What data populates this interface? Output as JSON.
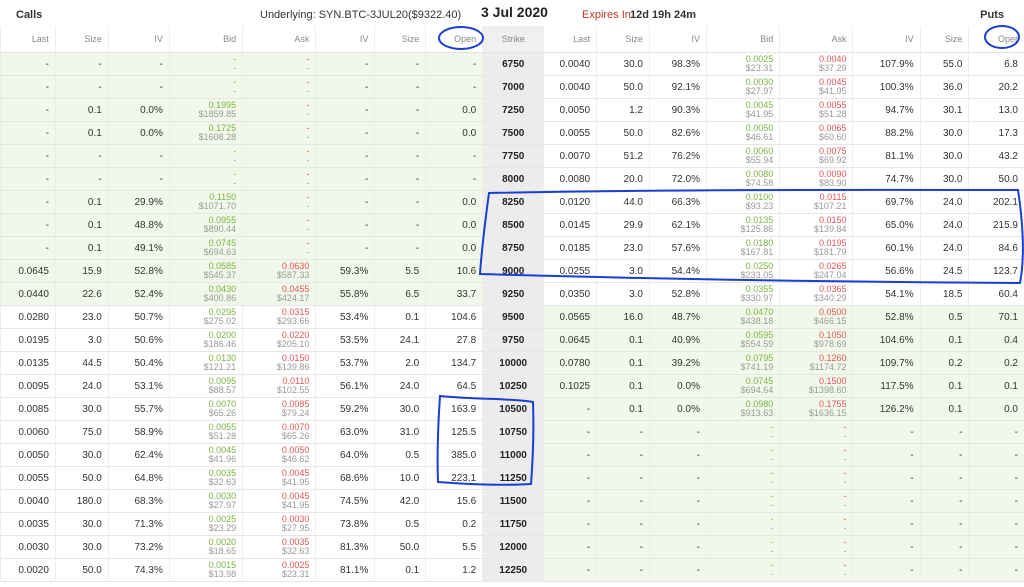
{
  "header": {
    "calls_label": "Calls",
    "puts_label": "Puts",
    "underlying": "Underlying: SYN.BTC-3JUL20($9322.40)",
    "date": "3 Jul 2020",
    "expires_label": "Expires In",
    "expires_value": "12d 19h 24m"
  },
  "columns": {
    "calls": [
      "Last",
      "Size",
      "IV",
      "Bid",
      "Ask",
      "IV",
      "Size",
      "Open"
    ],
    "strike": "Strike",
    "puts": [
      "Last",
      "Size",
      "IV",
      "Bid",
      "Ask",
      "IV",
      "Size",
      "Oper"
    ]
  },
  "rows": [
    {
      "strike": "6750",
      "itm_call": true,
      "itm_put": false,
      "call": {
        "last": "-",
        "size": "-",
        "iv": "-",
        "bid": "-",
        "bid_usd": "-",
        "ask": "-",
        "ask_usd": "-",
        "iv2": "-",
        "size2": "-",
        "open": "-"
      },
      "put": {
        "last": "0.0040",
        "size": "30.0",
        "iv": "98.3%",
        "bid": "0.0025",
        "bid_usd": "$23.31",
        "ask": "0.0040",
        "ask_usd": "$37.29",
        "iv2": "107.9%",
        "size2": "55.0",
        "open": "6.8"
      }
    },
    {
      "strike": "7000",
      "itm_call": true,
      "itm_put": false,
      "call": {
        "last": "-",
        "size": "-",
        "iv": "-",
        "bid": "-",
        "bid_usd": "-",
        "ask": "-",
        "ask_usd": "-",
        "iv2": "-",
        "size2": "-",
        "open": "-"
      },
      "put": {
        "last": "0.0040",
        "size": "50.0",
        "iv": "92.1%",
        "bid": "0.0030",
        "bid_usd": "$27.97",
        "ask": "0.0045",
        "ask_usd": "$41.95",
        "iv2": "100.3%",
        "size2": "36.0",
        "open": "20.2"
      }
    },
    {
      "strike": "7250",
      "itm_call": true,
      "itm_put": false,
      "call": {
        "last": "-",
        "size": "0.1",
        "iv": "0.0%",
        "bid": "0.1995",
        "bid_usd": "$1859.85",
        "ask": "-",
        "ask_usd": "-",
        "iv2": "-",
        "size2": "-",
        "open": "0.0"
      },
      "put": {
        "last": "0.0050",
        "size": "1.2",
        "iv": "90.3%",
        "bid": "0.0045",
        "bid_usd": "$41.95",
        "ask": "0.0055",
        "ask_usd": "$51.28",
        "iv2": "94.7%",
        "size2": "30.1",
        "open": "13.0"
      }
    },
    {
      "strike": "7500",
      "itm_call": true,
      "itm_put": false,
      "call": {
        "last": "-",
        "size": "0.1",
        "iv": "0.0%",
        "bid": "0.1725",
        "bid_usd": "$1608.28",
        "ask": "-",
        "ask_usd": "-",
        "iv2": "-",
        "size2": "-",
        "open": "0.0"
      },
      "put": {
        "last": "0.0055",
        "size": "50.0",
        "iv": "82.6%",
        "bid": "0.0050",
        "bid_usd": "$46.61",
        "ask": "0.0065",
        "ask_usd": "$60.60",
        "iv2": "88.2%",
        "size2": "30.0",
        "open": "17.3"
      }
    },
    {
      "strike": "7750",
      "itm_call": true,
      "itm_put": false,
      "call": {
        "last": "-",
        "size": "-",
        "iv": "-",
        "bid": "-",
        "bid_usd": "-",
        "ask": "-",
        "ask_usd": "-",
        "iv2": "-",
        "size2": "-",
        "open": "-"
      },
      "put": {
        "last": "0.0070",
        "size": "51.2",
        "iv": "76.2%",
        "bid": "0.0060",
        "bid_usd": "$55.94",
        "ask": "0.0075",
        "ask_usd": "$69.92",
        "iv2": "81.1%",
        "size2": "30.0",
        "open": "43.2"
      }
    },
    {
      "strike": "8000",
      "itm_call": true,
      "itm_put": false,
      "call": {
        "last": "-",
        "size": "-",
        "iv": "-",
        "bid": "-",
        "bid_usd": "-",
        "ask": "-",
        "ask_usd": "-",
        "iv2": "-",
        "size2": "-",
        "open": "-"
      },
      "put": {
        "last": "0.0080",
        "size": "20.0",
        "iv": "72.0%",
        "bid": "0.0080",
        "bid_usd": "$74.58",
        "ask": "0.0090",
        "ask_usd": "$83.90",
        "iv2": "74.7%",
        "size2": "30.0",
        "open": "50.0"
      }
    },
    {
      "strike": "8250",
      "itm_call": true,
      "itm_put": false,
      "call": {
        "last": "-",
        "size": "0.1",
        "iv": "29.9%",
        "bid": "0.1150",
        "bid_usd": "$1071.70",
        "ask": "-",
        "ask_usd": "-",
        "iv2": "-",
        "size2": "-",
        "open": "0.0"
      },
      "put": {
        "last": "0.0120",
        "size": "44.0",
        "iv": "66.3%",
        "bid": "0.0100",
        "bid_usd": "$93.23",
        "ask": "0.0115",
        "ask_usd": "$107.21",
        "iv2": "69.7%",
        "size2": "24.0",
        "open": "202.1"
      }
    },
    {
      "strike": "8500",
      "itm_call": true,
      "itm_put": false,
      "call": {
        "last": "-",
        "size": "0.1",
        "iv": "48.8%",
        "bid": "0.0955",
        "bid_usd": "$890.44",
        "ask": "-",
        "ask_usd": "-",
        "iv2": "-",
        "size2": "-",
        "open": "0.0"
      },
      "put": {
        "last": "0.0145",
        "size": "29.9",
        "iv": "62.1%",
        "bid": "0.0135",
        "bid_usd": "$125.86",
        "ask": "0.0150",
        "ask_usd": "$139.84",
        "iv2": "65.0%",
        "size2": "24.0",
        "open": "215.9"
      }
    },
    {
      "strike": "8750",
      "itm_call": true,
      "itm_put": false,
      "call": {
        "last": "-",
        "size": "0.1",
        "iv": "49.1%",
        "bid": "0.0745",
        "bid_usd": "$694.63",
        "ask": "-",
        "ask_usd": "-",
        "iv2": "-",
        "size2": "-",
        "open": "0.0"
      },
      "put": {
        "last": "0.0185",
        "size": "23.0",
        "iv": "57.6%",
        "bid": "0.0180",
        "bid_usd": "$167.81",
        "ask": "0.0195",
        "ask_usd": "$181.79",
        "iv2": "60.1%",
        "size2": "24.0",
        "open": "84.6"
      }
    },
    {
      "strike": "9000",
      "itm_call": true,
      "itm_put": false,
      "call": {
        "last": "0.0645",
        "size": "15.9",
        "iv": "52.8%",
        "bid": "0.0585",
        "bid_usd": "$545.37",
        "ask": "0.0630",
        "ask_usd": "$587.33",
        "iv2": "59.3%",
        "size2": "5.5",
        "open": "10.6"
      },
      "put": {
        "last": "0.0255",
        "size": "3.0",
        "iv": "54.4%",
        "bid": "0.0250",
        "bid_usd": "$233.05",
        "ask": "0.0265",
        "ask_usd": "$247.04",
        "iv2": "56.6%",
        "size2": "24.5",
        "open": "123.7"
      }
    },
    {
      "strike": "9250",
      "itm_call": true,
      "itm_put": false,
      "call": {
        "last": "0.0440",
        "size": "22.6",
        "iv": "52.4%",
        "bid": "0.0430",
        "bid_usd": "$400.86",
        "ask": "0.0455",
        "ask_usd": "$424.17",
        "iv2": "55.8%",
        "size2": "6.5",
        "open": "33.7"
      },
      "put": {
        "last": "0.0350",
        "size": "3.0",
        "iv": "52.8%",
        "bid": "0.0355",
        "bid_usd": "$330.97",
        "ask": "0.0365",
        "ask_usd": "$340.29",
        "iv2": "54.1%",
        "size2": "18.5",
        "open": "60.4"
      }
    },
    {
      "strike": "9500",
      "itm_call": false,
      "itm_put": true,
      "call": {
        "last": "0.0280",
        "size": "23.0",
        "iv": "50.7%",
        "bid": "0.0295",
        "bid_usd": "$275.02",
        "ask": "0.0315",
        "ask_usd": "$293.66",
        "iv2": "53.4%",
        "size2": "0.1",
        "open": "104.6"
      },
      "put": {
        "last": "0.0565",
        "size": "16.0",
        "iv": "48.7%",
        "bid": "0.0470",
        "bid_usd": "$438.18",
        "ask": "0.0500",
        "ask_usd": "$466.15",
        "iv2": "52.8%",
        "size2": "0.5",
        "open": "70.1"
      }
    },
    {
      "strike": "9750",
      "itm_call": false,
      "itm_put": true,
      "call": {
        "last": "0.0195",
        "size": "3.0",
        "iv": "50.6%",
        "bid": "0.0200",
        "bid_usd": "$186.46",
        "ask": "0.0220",
        "ask_usd": "$205.10",
        "iv2": "53.5%",
        "size2": "24.1",
        "open": "27.8"
      },
      "put": {
        "last": "0.0645",
        "size": "0.1",
        "iv": "40.9%",
        "bid": "0.0595",
        "bid_usd": "$554.59",
        "ask": "0.1050",
        "ask_usd": "$978.69",
        "iv2": "104.6%",
        "size2": "0.1",
        "open": "0.4"
      }
    },
    {
      "strike": "10000",
      "itm_call": false,
      "itm_put": true,
      "call": {
        "last": "0.0135",
        "size": "44.5",
        "iv": "50.4%",
        "bid": "0.0130",
        "bid_usd": "$121.21",
        "ask": "0.0150",
        "ask_usd": "$139.86",
        "iv2": "53.7%",
        "size2": "2.0",
        "open": "134.7"
      },
      "put": {
        "last": "0.0780",
        "size": "0.1",
        "iv": "39.2%",
        "bid": "0.0795",
        "bid_usd": "$741.19",
        "ask": "0.1260",
        "ask_usd": "$1174.72",
        "iv2": "109.7%",
        "size2": "0.2",
        "open": "0.2"
      }
    },
    {
      "strike": "10250",
      "itm_call": false,
      "itm_put": true,
      "call": {
        "last": "0.0095",
        "size": "24.0",
        "iv": "53.1%",
        "bid": "0.0095",
        "bid_usd": "$88.57",
        "ask": "0.0110",
        "ask_usd": "$102.55",
        "iv2": "56.1%",
        "size2": "24.0",
        "open": "64.5"
      },
      "put": {
        "last": "0.1025",
        "size": "0.1",
        "iv": "0.0%",
        "bid": "0.0745",
        "bid_usd": "$694.64",
        "ask": "0.1500",
        "ask_usd": "$1398.60",
        "iv2": "117.5%",
        "size2": "0.1",
        "open": "0.1"
      }
    },
    {
      "strike": "10500",
      "itm_call": false,
      "itm_put": true,
      "call": {
        "last": "0.0085",
        "size": "30.0",
        "iv": "55.7%",
        "bid": "0.0070",
        "bid_usd": "$65.26",
        "ask": "0.0085",
        "ask_usd": "$79.24",
        "iv2": "59.2%",
        "size2": "30.0",
        "open": "163.9"
      },
      "put": {
        "last": "-",
        "size": "0.1",
        "iv": "0.0%",
        "bid": "0.0980",
        "bid_usd": "$913.63",
        "ask": "0.1755",
        "ask_usd": "$1636.15",
        "iv2": "126.2%",
        "size2": "0.1",
        "open": "0.0"
      }
    },
    {
      "strike": "10750",
      "itm_call": false,
      "itm_put": true,
      "call": {
        "last": "0.0060",
        "size": "75.0",
        "iv": "58.9%",
        "bid": "0.0055",
        "bid_usd": "$51.28",
        "ask": "0.0070",
        "ask_usd": "$65.26",
        "iv2": "63.0%",
        "size2": "31.0",
        "open": "125.5"
      },
      "put": {
        "last": "-",
        "size": "-",
        "iv": "-",
        "bid": "-",
        "bid_usd": "-",
        "ask": "-",
        "ask_usd": "-",
        "iv2": "-",
        "size2": "-",
        "open": "-"
      }
    },
    {
      "strike": "11000",
      "itm_call": false,
      "itm_put": true,
      "call": {
        "last": "0.0050",
        "size": "30.0",
        "iv": "62.4%",
        "bid": "0.0045",
        "bid_usd": "$41.96",
        "ask": "0.0050",
        "ask_usd": "$46.62",
        "iv2": "64.0%",
        "size2": "0.5",
        "open": "385.0"
      },
      "put": {
        "last": "-",
        "size": "-",
        "iv": "-",
        "bid": "-",
        "bid_usd": "-",
        "ask": "-",
        "ask_usd": "-",
        "iv2": "-",
        "size2": "-",
        "open": "-"
      }
    },
    {
      "strike": "11250",
      "itm_call": false,
      "itm_put": true,
      "call": {
        "last": "0.0055",
        "size": "50.0",
        "iv": "64.8%",
        "bid": "0.0035",
        "bid_usd": "$32.63",
        "ask": "0.0045",
        "ask_usd": "$41.95",
        "iv2": "68.6%",
        "size2": "10.0",
        "open": "223.1"
      },
      "put": {
        "last": "-",
        "size": "-",
        "iv": "-",
        "bid": "-",
        "bid_usd": "-",
        "ask": "-",
        "ask_usd": "-",
        "iv2": "-",
        "size2": "-",
        "open": "-"
      }
    },
    {
      "strike": "11500",
      "itm_call": false,
      "itm_put": true,
      "call": {
        "last": "0.0040",
        "size": "180.0",
        "iv": "68.3%",
        "bid": "0.0030",
        "bid_usd": "$27.97",
        "ask": "0.0045",
        "ask_usd": "$41.95",
        "iv2": "74.5%",
        "size2": "42.0",
        "open": "15.6"
      },
      "put": {
        "last": "-",
        "size": "-",
        "iv": "-",
        "bid": "-",
        "bid_usd": "-",
        "ask": "-",
        "ask_usd": "-",
        "iv2": "-",
        "size2": "-",
        "open": "-"
      }
    },
    {
      "strike": "11750",
      "itm_call": false,
      "itm_put": true,
      "call": {
        "last": "0.0035",
        "size": "30.0",
        "iv": "71.3%",
        "bid": "0.0025",
        "bid_usd": "$23.29",
        "ask": "0.0030",
        "ask_usd": "$27.95",
        "iv2": "73.8%",
        "size2": "0.5",
        "open": "0.2"
      },
      "put": {
        "last": "-",
        "size": "-",
        "iv": "-",
        "bid": "-",
        "bid_usd": "-",
        "ask": "-",
        "ask_usd": "-",
        "iv2": "-",
        "size2": "-",
        "open": "-"
      }
    },
    {
      "strike": "12000",
      "itm_call": false,
      "itm_put": true,
      "call": {
        "last": "0.0030",
        "size": "30.0",
        "iv": "73.2%",
        "bid": "0.0020",
        "bid_usd": "$18.65",
        "ask": "0.0035",
        "ask_usd": "$32.63",
        "iv2": "81.3%",
        "size2": "50.0",
        "open": "5.5"
      },
      "put": {
        "last": "-",
        "size": "-",
        "iv": "-",
        "bid": "-",
        "bid_usd": "-",
        "ask": "-",
        "ask_usd": "-",
        "iv2": "-",
        "size2": "-",
        "open": "-"
      }
    },
    {
      "strike": "12250",
      "itm_call": false,
      "itm_put": true,
      "call": {
        "last": "0.0020",
        "size": "50.0",
        "iv": "74.3%",
        "bid": "0.0015",
        "bid_usd": "$13.98",
        "ask": "0.0025",
        "ask_usd": "$23.31",
        "iv2": "81.1%",
        "size2": "0.1",
        "open": "1.2"
      },
      "put": {
        "last": "-",
        "size": "-",
        "iv": "-",
        "bid": "-",
        "bid_usd": "-",
        "ask": "-",
        "ask_usd": "-",
        "iv2": "-",
        "size2": "-",
        "open": "-"
      }
    }
  ],
  "annotations": {
    "color": "#1a3fd1"
  }
}
